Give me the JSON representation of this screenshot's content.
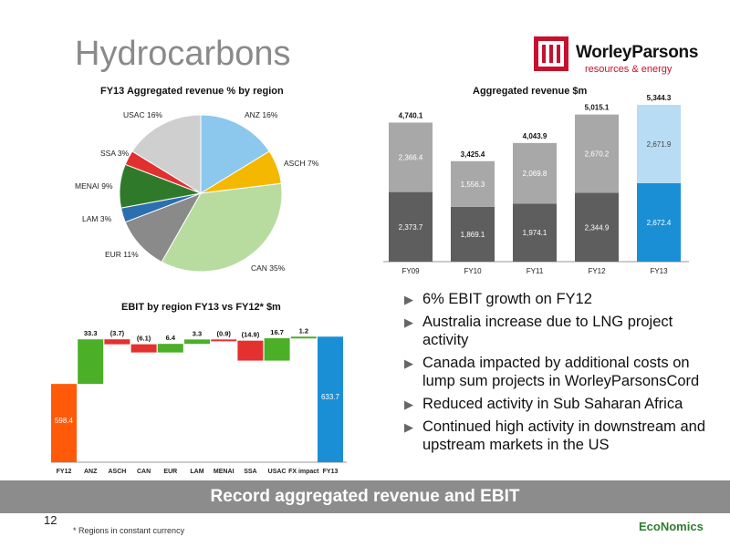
{
  "slide": {
    "title": "Hydrocarbons",
    "page_number": "12",
    "banner": "Record aggregated revenue and EBIT",
    "footnote": "* Regions in constant currency",
    "footer_brand": "EcoNomics"
  },
  "logo": {
    "name": "WorleyParsons",
    "tagline": "resources & energy",
    "brand_color": "#c8102e"
  },
  "bullets": [
    "6% EBIT growth on FY12",
    "Australia increase due to LNG project activity",
    "Canada impacted by additional costs on lump sum projects in WorleyParsonsCord",
    "Reduced activity in Sub Saharan Africa",
    "Continued high activity in downstream and upstream markets in the US"
  ],
  "chart_data": [
    {
      "type": "pie",
      "title": "FY13 Aggregated revenue % by region",
      "slices": [
        {
          "label": "ANZ 16%",
          "value": 16,
          "color": "#8cc8ee"
        },
        {
          "label": "ASCH 7%",
          "value": 7,
          "color": "#f5b800"
        },
        {
          "label": "CAN 35%",
          "value": 35,
          "color": "#b8dca0"
        },
        {
          "label": "EUR 11%",
          "value": 11,
          "color": "#8a8a8a"
        },
        {
          "label": "LAM 3%",
          "value": 3,
          "color": "#2c6fb0"
        },
        {
          "label": "MENAI 9%",
          "value": 9,
          "color": "#2f7a2a"
        },
        {
          "label": "SSA 3%",
          "value": 3,
          "color": "#e03030"
        },
        {
          "label": "USAC 16%",
          "value": 16,
          "color": "#cfcfcf"
        }
      ]
    },
    {
      "type": "bar",
      "title": "Aggregated revenue $m",
      "categories": [
        "FY09",
        "FY10",
        "FY11",
        "FY12",
        "FY13"
      ],
      "series": [
        {
          "values": [
            2373.7,
            1869.1,
            1974.1,
            2344.9,
            2672.4
          ]
        },
        {
          "values": [
            2366.4,
            1556.3,
            2069.8,
            2670.2,
            2671.9
          ]
        }
      ],
      "totals": [
        "4,740.1",
        "3,425.4",
        "4,043.9",
        "5,015.1",
        "5,344.3"
      ],
      "bottom_labels": [
        "2,373.7",
        "1,869.1",
        "1,974.1",
        "2,344.9",
        "2,672.4"
      ],
      "top_labels": [
        "2,366.4",
        "1,556.3",
        "2,069.8",
        "2,670.2",
        "2,671.9"
      ],
      "ylim": [
        0,
        5500
      ]
    },
    {
      "type": "bar",
      "title": "EBIT by region FY13 vs FY12* $m",
      "categories": [
        "FY12",
        "ANZ",
        "ASCH",
        "CAN",
        "EUR",
        "LAM",
        "MENAI",
        "SSA",
        "USAC",
        "FX impact",
        "FY13"
      ],
      "values": [
        598.4,
        33.3,
        -3.7,
        -6.1,
        6.4,
        3.3,
        -0.9,
        -14.9,
        16.7,
        1.2,
        633.7
      ],
      "value_labels": [
        "598.4",
        "33.3",
        "(3.7)",
        "(6.1)",
        "6.4",
        "3.3",
        "(0.9)",
        "(14.9)",
        "16.7",
        "1.2",
        "633.7"
      ],
      "ylim": [
        540,
        640
      ]
    }
  ]
}
